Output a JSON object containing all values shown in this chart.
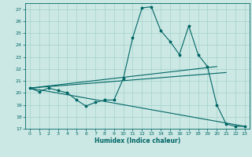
{
  "title": "",
  "xlabel": "Humidex (Indice chaleur)",
  "bg_color": "#cce8e4",
  "grid_color": "#aad4ce",
  "line_color": "#006666",
  "xlim": [
    -0.5,
    23.5
  ],
  "ylim": [
    17,
    27.5
  ],
  "yticks": [
    17,
    18,
    19,
    20,
    21,
    22,
    23,
    24,
    25,
    26,
    27
  ],
  "xticks": [
    0,
    1,
    2,
    3,
    4,
    5,
    6,
    7,
    8,
    9,
    10,
    11,
    12,
    13,
    14,
    15,
    16,
    17,
    18,
    19,
    20,
    21,
    22,
    23
  ],
  "line1_x": [
    0,
    1,
    2,
    3,
    4,
    5,
    6,
    7,
    8,
    9,
    10,
    11,
    12,
    13,
    14,
    15,
    16,
    17,
    18,
    19,
    20,
    21,
    22,
    23
  ],
  "line1_y": [
    20.4,
    20.1,
    20.4,
    20.2,
    20.0,
    19.4,
    18.9,
    19.2,
    19.4,
    19.4,
    21.2,
    24.6,
    27.1,
    27.2,
    25.2,
    24.3,
    23.2,
    25.6,
    23.2,
    22.2,
    19.0,
    17.4,
    17.2,
    17.2
  ],
  "line2_x": [
    0,
    20
  ],
  "line2_y": [
    20.4,
    22.2
  ],
  "line3_x": [
    0,
    21
  ],
  "line3_y": [
    20.4,
    21.7
  ],
  "line4_x": [
    0,
    23
  ],
  "line4_y": [
    20.4,
    17.2
  ]
}
